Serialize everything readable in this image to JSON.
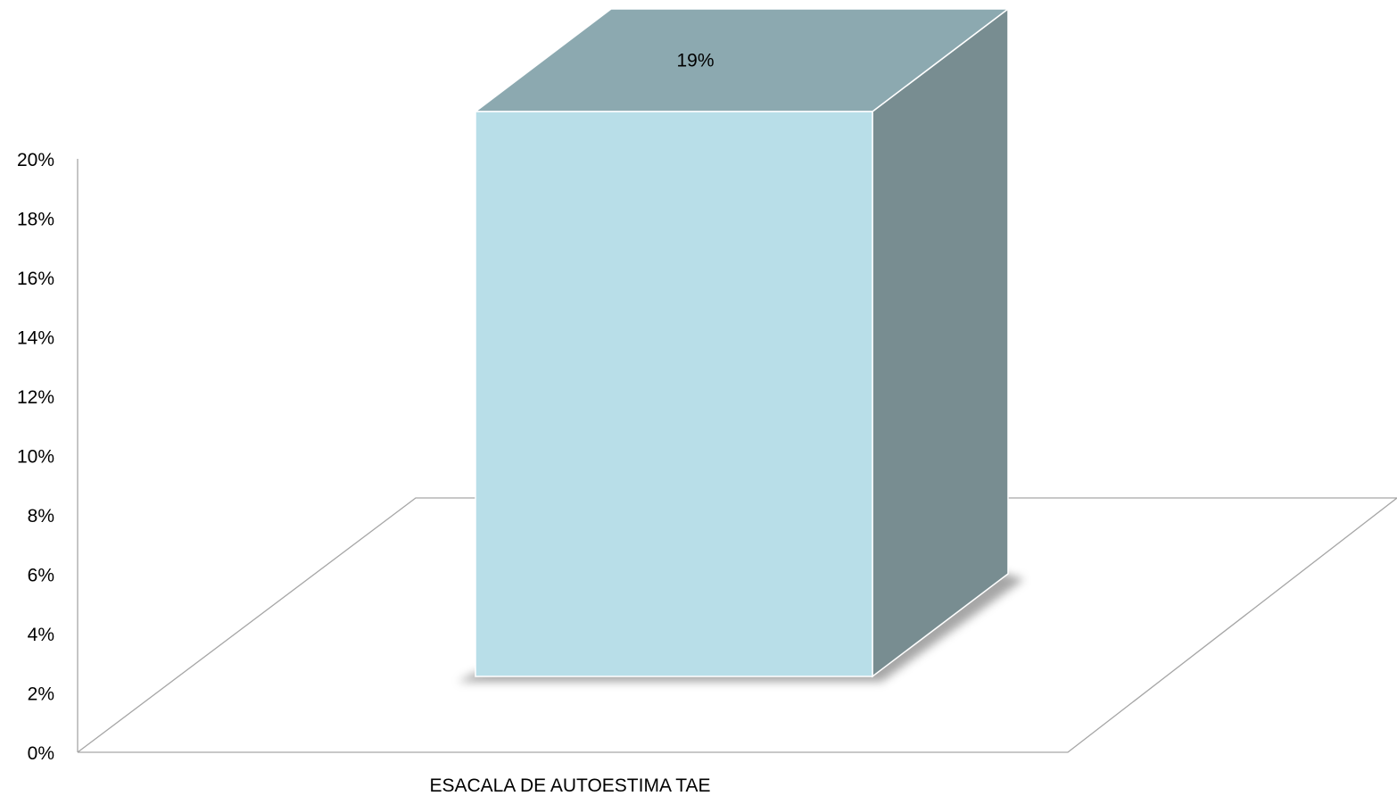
{
  "chart_data": {
    "type": "bar",
    "categories": [
      "ESACALA DE AUTOESTIMA TAE"
    ],
    "values": [
      19
    ],
    "data_labels": [
      "19%"
    ],
    "ylim": [
      0,
      20
    ],
    "yticks": [
      0,
      2,
      4,
      6,
      8,
      10,
      12,
      14,
      16,
      18,
      20
    ],
    "ytick_labels": [
      "0%",
      "2%",
      "4%",
      "6%",
      "8%",
      "10%",
      "12%",
      "14%",
      "16%",
      "18%",
      "20%"
    ],
    "title": "",
    "xlabel": "",
    "ylabel": "",
    "grid": false,
    "legend": "none",
    "style": "3d-column",
    "colors": {
      "front": "#b8dee8",
      "side": "#788d91",
      "top": "#8ca9b0",
      "floor_line": "#a6a6a6"
    }
  }
}
